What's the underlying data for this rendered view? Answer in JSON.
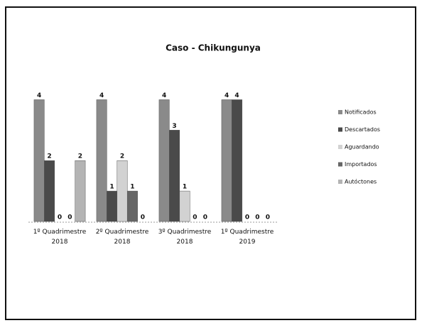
{
  "chart_data": {
    "type": "bar",
    "title": "Caso - Chikungunya",
    "categories": [
      "1º Quadrimestre\n2018",
      "2º Quadrimestre\n2018",
      "3º Quadrimestre\n2018",
      "1º Quadrimestre\n2019"
    ],
    "series": [
      {
        "name": "Notificados",
        "color": "#8a8a8a",
        "values": [
          4,
          4,
          4,
          4
        ]
      },
      {
        "name": "Descartados",
        "color": "#4a4a4a",
        "values": [
          2,
          1,
          3,
          4
        ]
      },
      {
        "name": "Aguardando",
        "color": "#d2d2d2",
        "values": [
          0,
          2,
          1,
          0
        ]
      },
      {
        "name": "Importados",
        "color": "#666666",
        "values": [
          0,
          1,
          0,
          0
        ]
      },
      {
        "name": "Autóctones",
        "color": "#b4b4b4",
        "values": [
          2,
          0,
          0,
          0
        ]
      }
    ],
    "ylim": [
      0,
      4.5
    ],
    "legend": "right"
  }
}
